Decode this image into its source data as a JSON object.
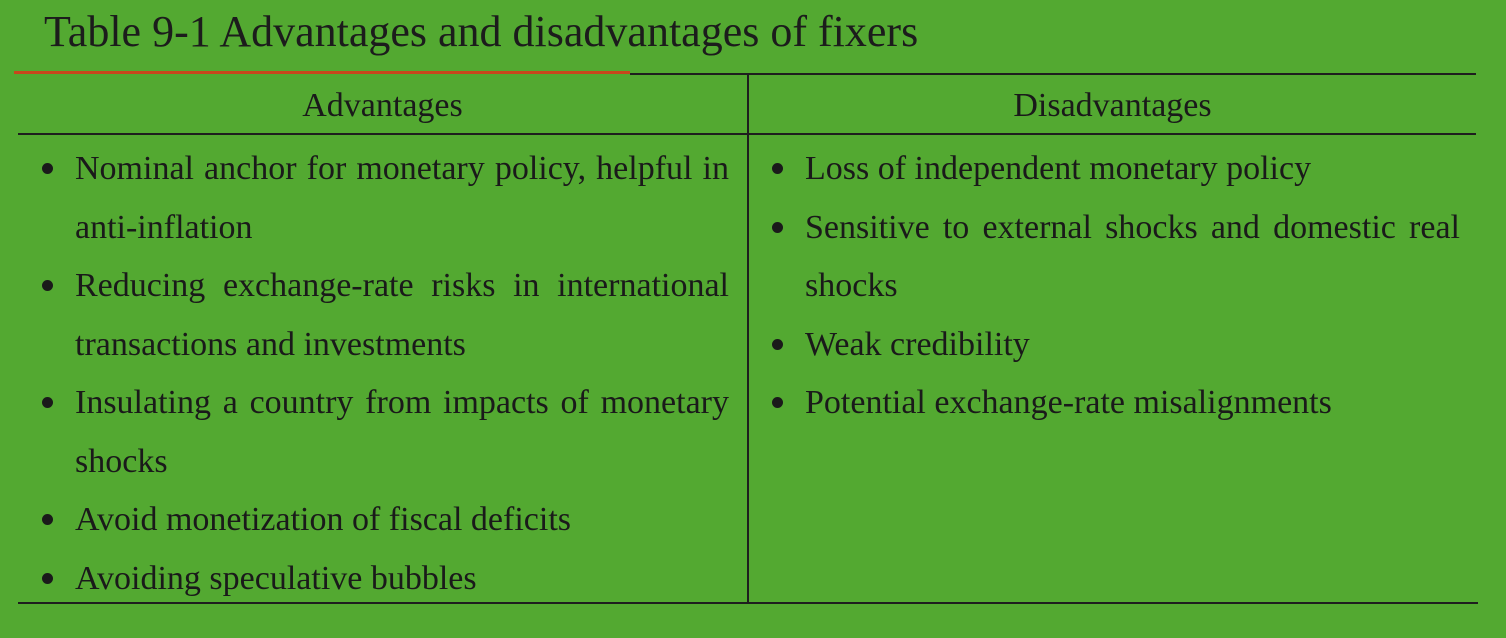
{
  "title": "Table 9-1 Advantages and disadvantages of fixers",
  "columns": {
    "advantages_header": "Advantages",
    "disadvantages_header": "Disadvantages"
  },
  "advantages": [
    "Nominal anchor for monetary policy, helpful in anti-inflation",
    "Reducing exchange-rate risks in international transactions and investments",
    "Insulating a country from impacts of monetary shocks",
    "Avoid monetization of fiscal deficits",
    "Avoiding speculative bubbles"
  ],
  "disadvantages": [
    "Loss of independent monetary policy",
    "Sensitive to external shocks and domestic real shocks",
    "Weak credibility",
    "Potential exchange-rate misalignments"
  ],
  "colors": {
    "background": "#53a931",
    "title_underline": "#c8471c",
    "rules": "#1e1e1e"
  }
}
